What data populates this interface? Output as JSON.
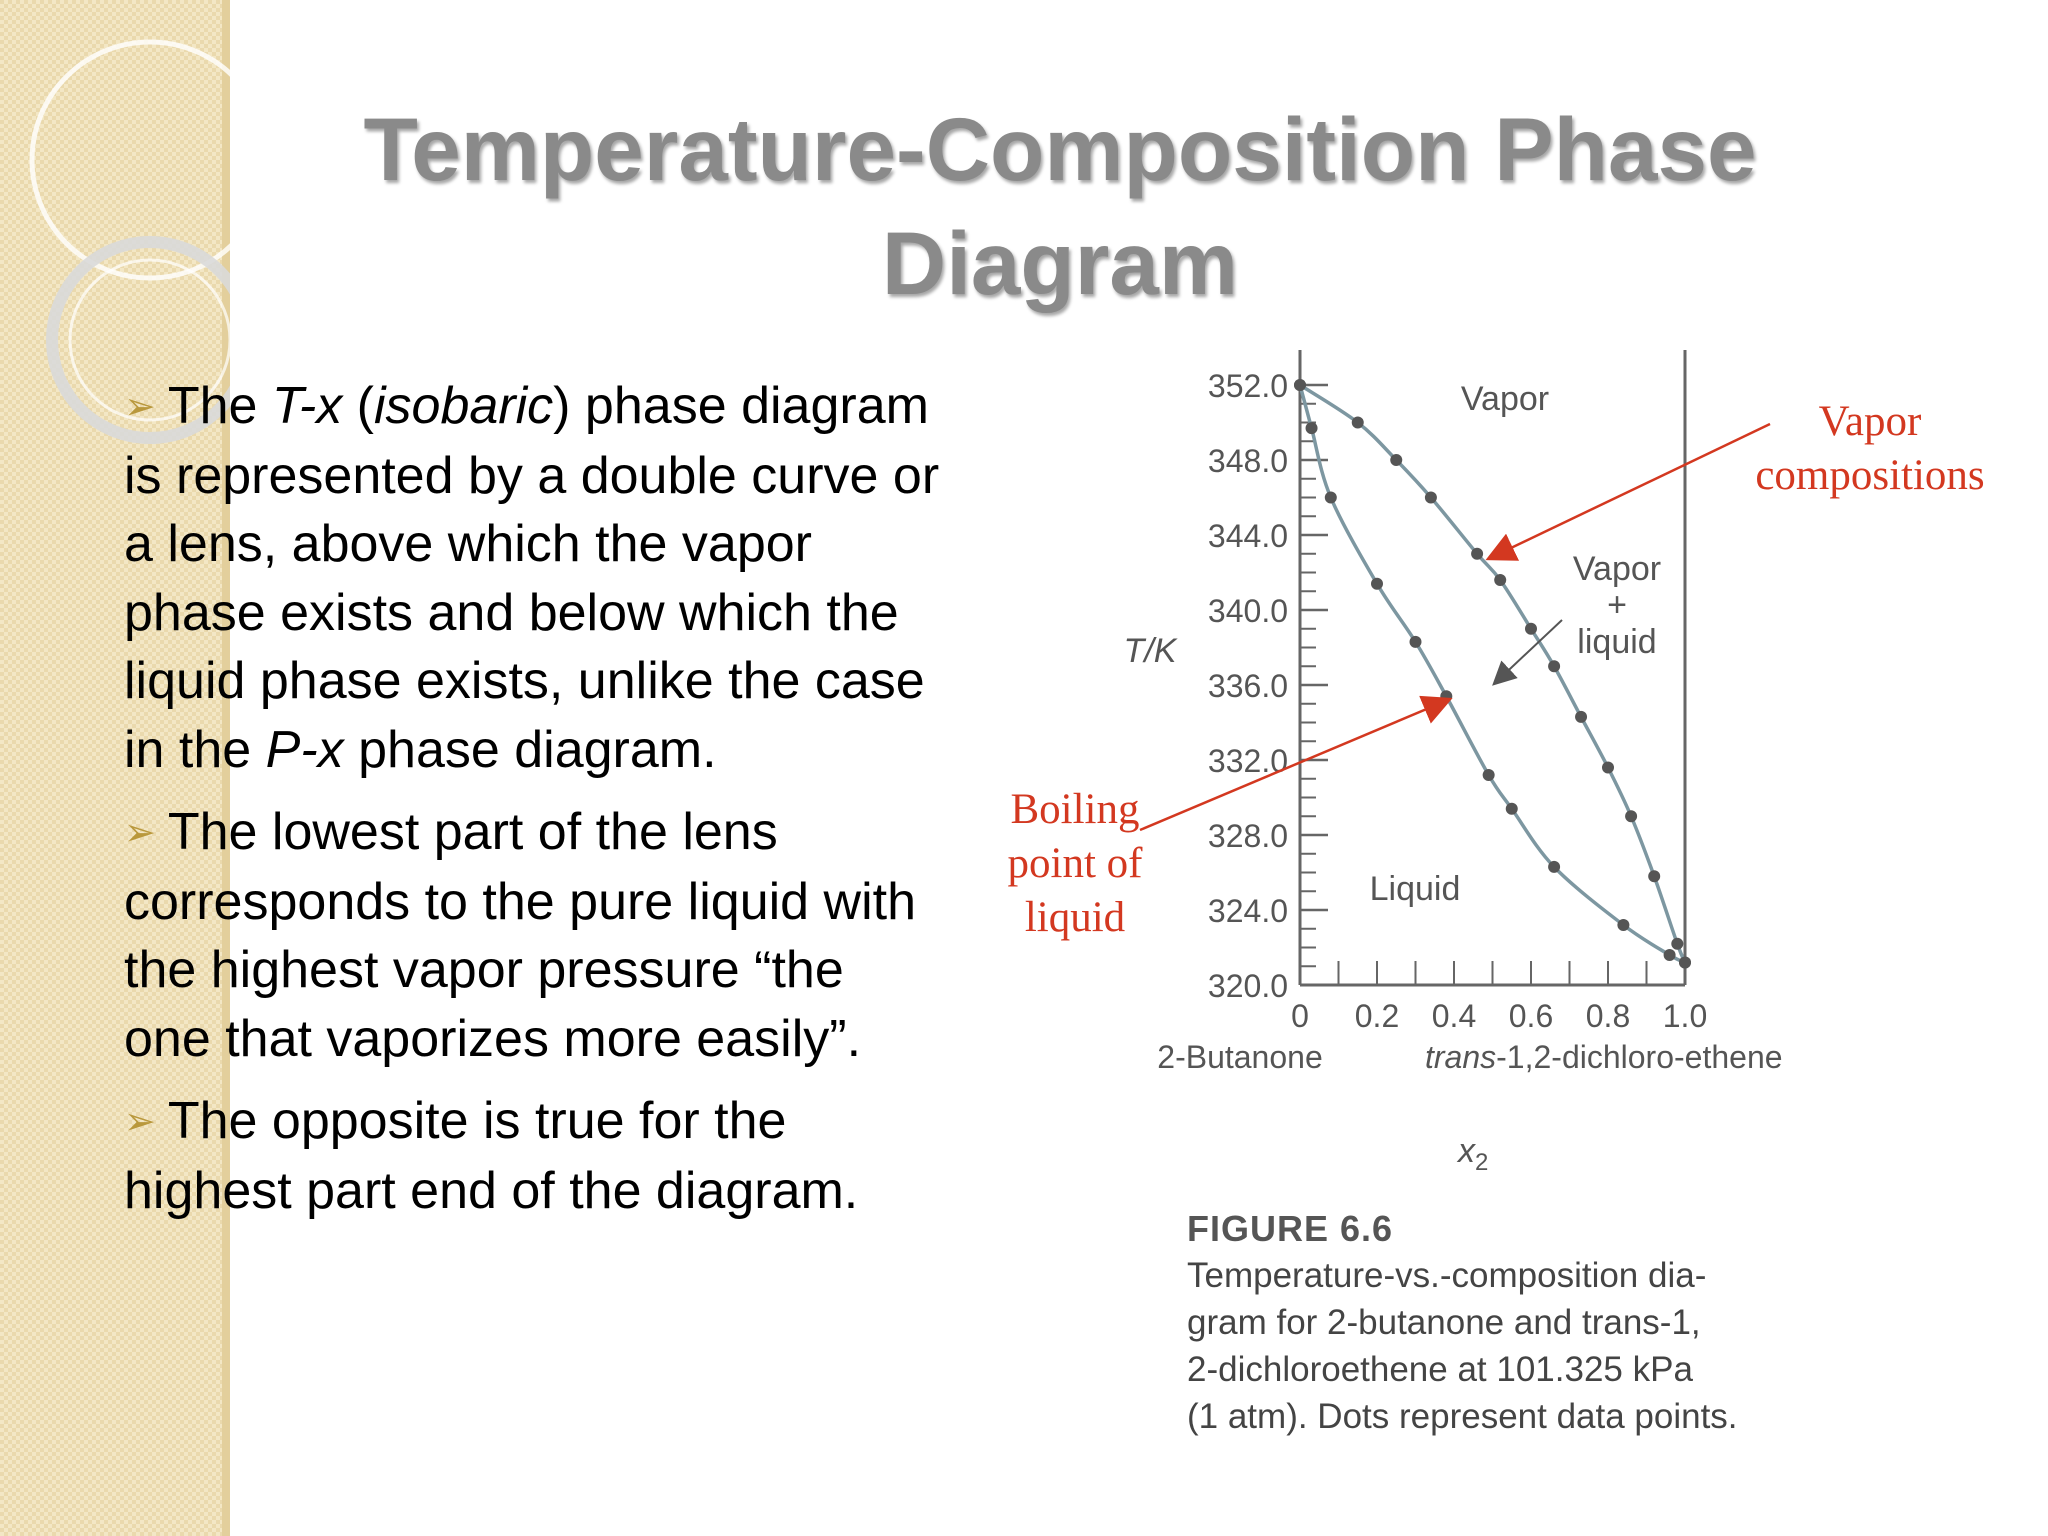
{
  "slide": {
    "title": "Temperature-Composition Phase Diagram"
  },
  "bullets": [
    {
      "runs": [
        {
          "text": "The ",
          "italic": false
        },
        {
          "text": "T-x",
          "italic": true
        },
        {
          "text": " (",
          "italic": false
        },
        {
          "text": "isobaric",
          "italic": true
        },
        {
          "text": ") phase diagram is represented by a double curve or a lens, above which the vapor phase exists and below which the liquid phase exists, unlike the case in the ",
          "italic": false
        },
        {
          "text": "P-x",
          "italic": true
        },
        {
          "text": " phase diagram.",
          "italic": false
        }
      ]
    },
    {
      "runs": [
        {
          "text": "The lowest part of the lens corresponds to the pure liquid with the highest vapor pressure “the one that vaporizes more easily”.",
          "italic": false
        }
      ]
    },
    {
      "runs": [
        {
          "text": "The opposite is true for the highest part end of the diagram.",
          "italic": false
        }
      ]
    }
  ],
  "figure": {
    "y_axis_label": "T/K",
    "x_axis_label": "x",
    "x_axis_label_sub": "2",
    "left_component": "2-Butanone",
    "right_component_italic": "trans",
    "right_component_rest": "-1,2-dichloro-ethene",
    "region_vapor": "Vapor",
    "region_two_phase_line1": "Vapor",
    "region_two_phase_line2": "+",
    "region_two_phase_line3": "liquid",
    "region_liquid": "Liquid",
    "y_ticks": [
      "352.0",
      "348.0",
      "344.0",
      "340.0",
      "336.0",
      "332.0",
      "328.0",
      "324.0",
      "320.0"
    ],
    "x_ticks": [
      "0",
      "0.2",
      "0.4",
      "0.6",
      "0.8",
      "1.0"
    ],
    "caption_title": "FIGURE 6.6",
    "caption_lines": [
      "Temperature-vs.-composition dia-",
      "gram for 2-butanone and trans-1,",
      "2-dichloroethene at 101.325 kPa",
      "(1 atm). Dots represent data points."
    ]
  },
  "annotations": {
    "vapor_compositions": [
      "Vapor",
      "compositions"
    ],
    "boiling_point": [
      "Boiling",
      "point of",
      "liquid"
    ]
  },
  "colors": {
    "title": "#8a8a8a",
    "annotation": "#d33820",
    "curve": "#7d97a1",
    "dot": "#555555",
    "sidebar": "#f3e7c5"
  },
  "chart_data": {
    "type": "line",
    "title": "",
    "xlabel": "x2",
    "ylabel": "T/K",
    "xlim": [
      0,
      1.0
    ],
    "ylim": [
      320.0,
      352.0
    ],
    "series": [
      {
        "name": "Boiling point of liquid",
        "points": [
          [
            0.0,
            352.0
          ],
          [
            0.03,
            349.7
          ],
          [
            0.08,
            346.0
          ],
          [
            0.2,
            341.4
          ],
          [
            0.3,
            338.3
          ],
          [
            0.38,
            335.4
          ],
          [
            0.49,
            331.2
          ],
          [
            0.55,
            329.4
          ],
          [
            0.66,
            326.3
          ],
          [
            0.84,
            323.2
          ],
          [
            0.96,
            321.6
          ],
          [
            1.0,
            321.2
          ]
        ]
      },
      {
        "name": "Vapor compositions",
        "points": [
          [
            0.0,
            352.0
          ],
          [
            0.15,
            350.0
          ],
          [
            0.25,
            348.0
          ],
          [
            0.34,
            346.0
          ],
          [
            0.46,
            343.0
          ],
          [
            0.52,
            341.6
          ],
          [
            0.6,
            339.0
          ],
          [
            0.66,
            337.0
          ],
          [
            0.73,
            334.3
          ],
          [
            0.8,
            331.6
          ],
          [
            0.86,
            329.0
          ],
          [
            0.92,
            325.8
          ],
          [
            0.98,
            322.2
          ],
          [
            1.0,
            321.2
          ]
        ]
      }
    ]
  }
}
